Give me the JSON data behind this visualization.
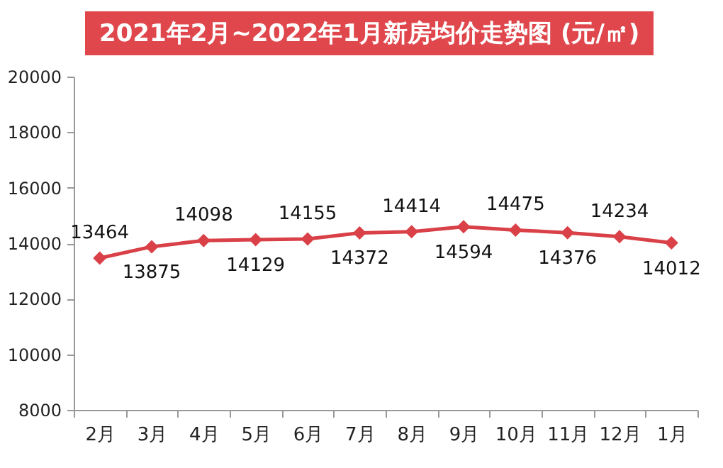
{
  "chart_data": {
    "type": "line",
    "title": "2021年2月~2022年1月新房均价走势图 (元/㎡)",
    "categories": [
      "2月",
      "3月",
      "4月",
      "5月",
      "6月",
      "7月",
      "8月",
      "9月",
      "10月",
      "11月",
      "12月",
      "1月"
    ],
    "series": [
      {
        "color": "#d94047",
        "values": [
          13464,
          13875,
          14098,
          14129,
          14155,
          14372,
          14414,
          14594,
          14475,
          14376,
          14234,
          14012
        ]
      }
    ],
    "ylim": [
      8000,
      20000
    ],
    "yticks": [
      8000,
      10000,
      12000,
      14000,
      16000,
      18000,
      20000
    ],
    "marker": "diamond",
    "data_labels": true,
    "grid": false,
    "legend": false
  }
}
